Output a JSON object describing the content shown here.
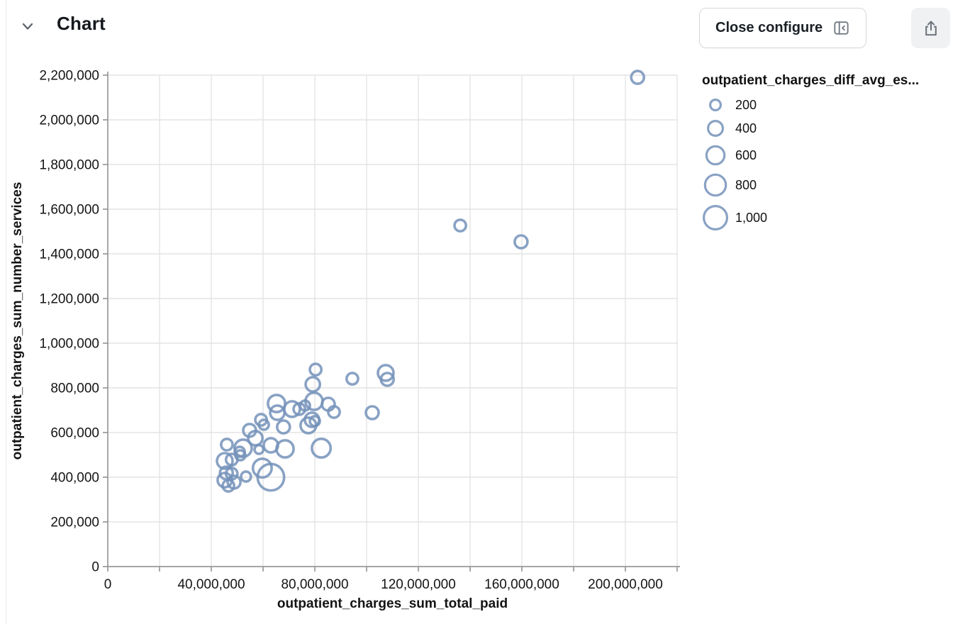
{
  "header": {
    "title": "Chart",
    "collapse_icon": "chevron-down"
  },
  "toolbar": {
    "close_configure_label": "Close configure",
    "close_configure_icon": "panel-collapse-left",
    "share_icon": "share-upload"
  },
  "colors": {
    "bubble_stroke": "#7492ba",
    "grid": "#e3e3e3",
    "axis": "#989898",
    "text": "#141414",
    "icon_gray": "#6e747c"
  },
  "chart_data": {
    "type": "scatter",
    "title": "",
    "xlabel": "outpatient_charges_sum_total_paid",
    "ylabel": "outpatient_charges_sum_number_services",
    "xlim": [
      0,
      220000000
    ],
    "ylim": [
      0,
      2200000
    ],
    "x_tick_step": 20000000,
    "x_label_step": 40000000,
    "x_label_max": 200000000,
    "y_tick_step": 200000,
    "grid": true,
    "legend": {
      "title": "outpatient_charges_diff_avg_es...",
      "position": "right",
      "sizes": [
        200,
        400,
        600,
        800,
        1000
      ]
    },
    "size_field": "outpatient_charges_diff_avg_es...",
    "points": [
      [
        204700000,
        2190000,
        300
      ],
      [
        136200000,
        1527000,
        240
      ],
      [
        159700000,
        1454000,
        300
      ],
      [
        80300000,
        882000,
        240
      ],
      [
        79200000,
        816000,
        380
      ],
      [
        94500000,
        841000,
        240
      ],
      [
        107400000,
        867000,
        450
      ],
      [
        108000000,
        838000,
        300
      ],
      [
        102200000,
        689000,
        300
      ],
      [
        79700000,
        740000,
        540
      ],
      [
        76200000,
        721000,
        180
      ],
      [
        74000000,
        705000,
        240
      ],
      [
        85200000,
        727000,
        300
      ],
      [
        87400000,
        692000,
        240
      ],
      [
        78900000,
        657000,
        380
      ],
      [
        80000000,
        651000,
        180
      ],
      [
        77500000,
        632000,
        450
      ],
      [
        82500000,
        530000,
        640
      ],
      [
        65200000,
        730000,
        540
      ],
      [
        65500000,
        689000,
        380
      ],
      [
        71200000,
        705000,
        450
      ],
      [
        59200000,
        657000,
        240
      ],
      [
        60300000,
        635000,
        180
      ],
      [
        67900000,
        625000,
        300
      ],
      [
        54800000,
        610000,
        300
      ],
      [
        57000000,
        575000,
        380
      ],
      [
        46000000,
        546000,
        240
      ],
      [
        52300000,
        530000,
        540
      ],
      [
        51000000,
        514000,
        180
      ],
      [
        58400000,
        524000,
        140
      ],
      [
        63000000,
        543000,
        380
      ],
      [
        68500000,
        527000,
        540
      ],
      [
        45200000,
        473000,
        450
      ],
      [
        47900000,
        479000,
        240
      ],
      [
        51200000,
        498000,
        180
      ],
      [
        45800000,
        419000,
        300
      ],
      [
        47900000,
        416000,
        240
      ],
      [
        45200000,
        387000,
        380
      ],
      [
        48800000,
        378000,
        300
      ],
      [
        46600000,
        362000,
        240
      ],
      [
        53400000,
        403000,
        180
      ],
      [
        59700000,
        441000,
        640
      ],
      [
        63000000,
        400000,
        1300
      ]
    ]
  }
}
